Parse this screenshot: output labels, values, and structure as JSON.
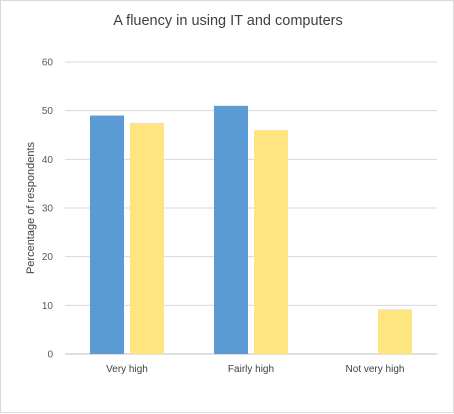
{
  "chart_data": {
    "type": "bar",
    "title": "A fluency in using IT and computers",
    "xlabel": "",
    "ylabel": "Percentage of respondents",
    "categories": [
      "Very high",
      "Fairly high",
      "Not very high"
    ],
    "series": [
      {
        "values": [
          49,
          51,
          0
        ],
        "color": "#5b9bd5"
      },
      {
        "values": [
          47.5,
          46,
          9.2
        ],
        "color": "#ffe57f"
      }
    ],
    "ylim": [
      0,
      60
    ],
    "yticks": [
      "0",
      "10",
      "20",
      "30",
      "40",
      "50",
      "60"
    ],
    "grid": true,
    "legend": "none"
  }
}
